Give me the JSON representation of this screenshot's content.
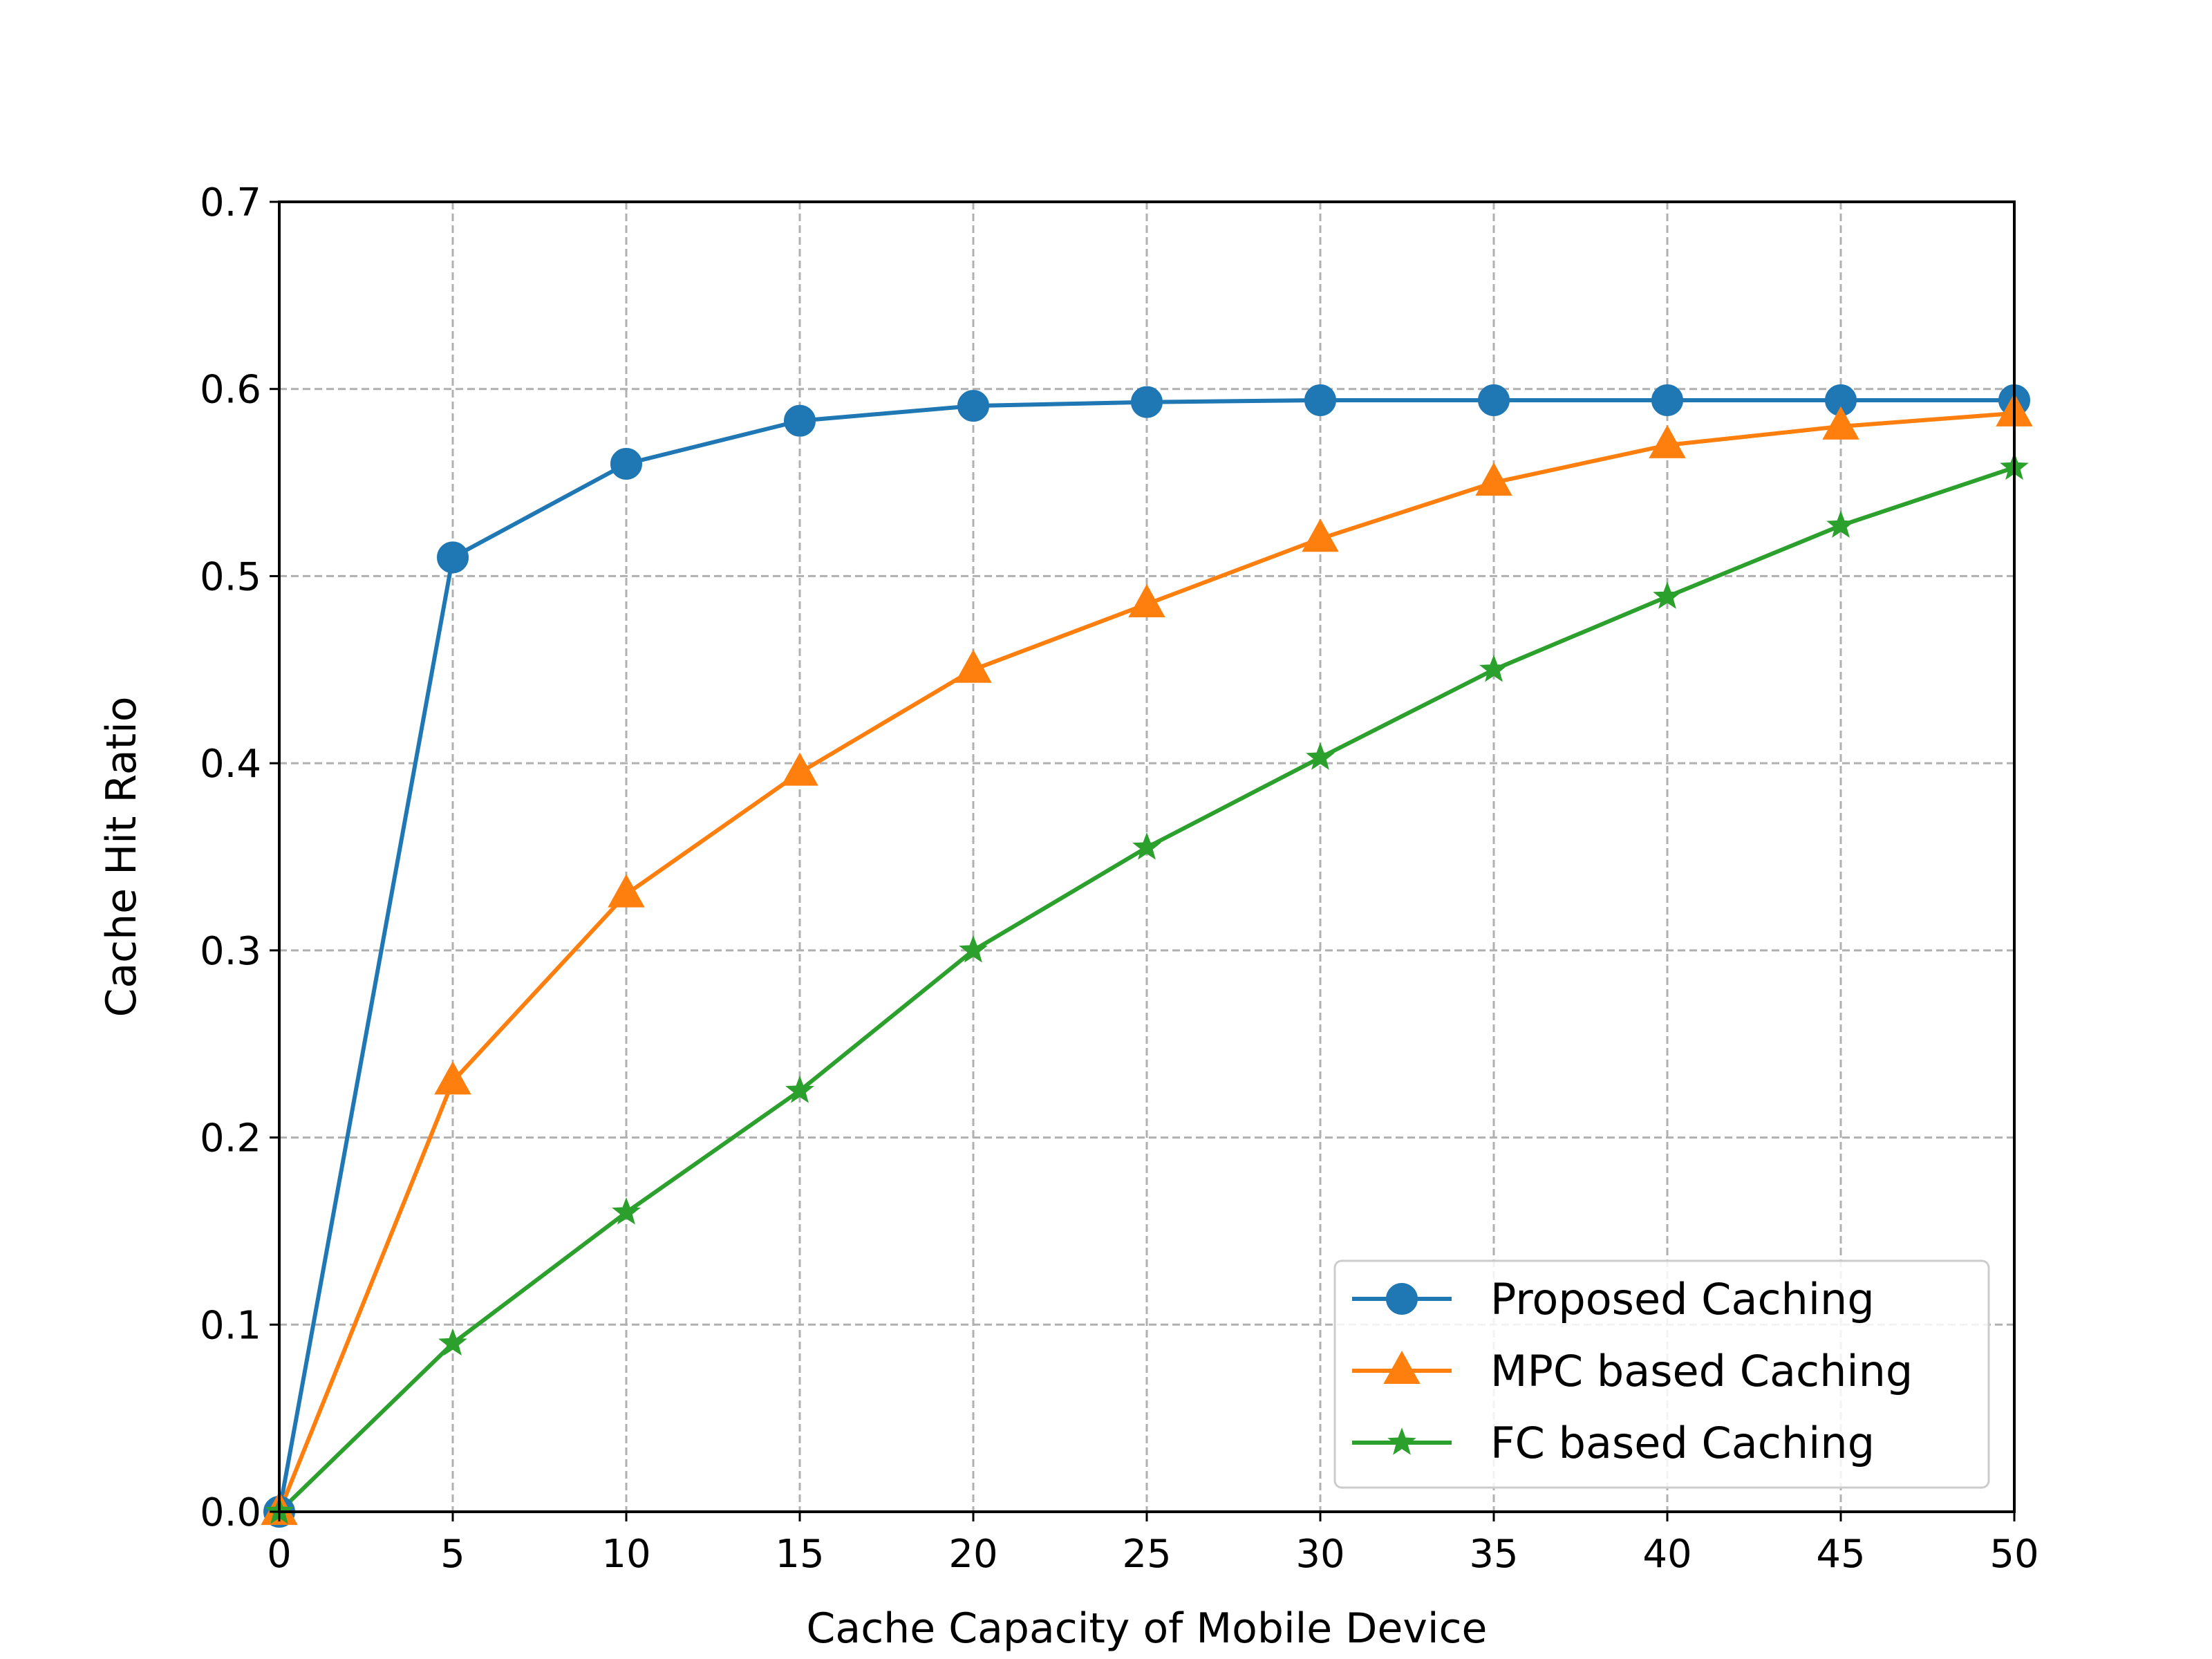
{
  "chart_data": {
    "type": "line",
    "title": "",
    "xlabel": "Cache Capacity of Mobile Device",
    "ylabel": "Cache Hit Ratio",
    "xlim": [
      0,
      50
    ],
    "ylim": [
      0,
      0.7
    ],
    "x_ticks": [
      "0",
      "5",
      "10",
      "15",
      "20",
      "25",
      "30",
      "35",
      "40",
      "45",
      "50"
    ],
    "y_ticks": [
      "0.0",
      "0.1",
      "0.2",
      "0.3",
      "0.4",
      "0.5",
      "0.6",
      "0.7"
    ],
    "grid": true,
    "legend_position": "lower-right",
    "x": [
      0,
      5,
      10,
      15,
      20,
      25,
      30,
      35,
      40,
      45,
      50
    ],
    "series": [
      {
        "name": "Proposed Caching",
        "color": "#1f77b4",
        "marker": "circle",
        "values": [
          0.0,
          0.51,
          0.56,
          0.583,
          0.591,
          0.593,
          0.594,
          0.594,
          0.594,
          0.594,
          0.594
        ]
      },
      {
        "name": "MPC based Caching",
        "color": "#ff7f0e",
        "marker": "triangle",
        "values": [
          0.0,
          0.23,
          0.33,
          0.395,
          0.45,
          0.485,
          0.52,
          0.55,
          0.57,
          0.58,
          0.587
        ]
      },
      {
        "name": "FC based Caching",
        "color": "#2ca02c",
        "marker": "star",
        "values": [
          0.0,
          0.09,
          0.16,
          0.225,
          0.3,
          0.355,
          0.403,
          0.45,
          0.489,
          0.527,
          0.558
        ]
      }
    ]
  }
}
